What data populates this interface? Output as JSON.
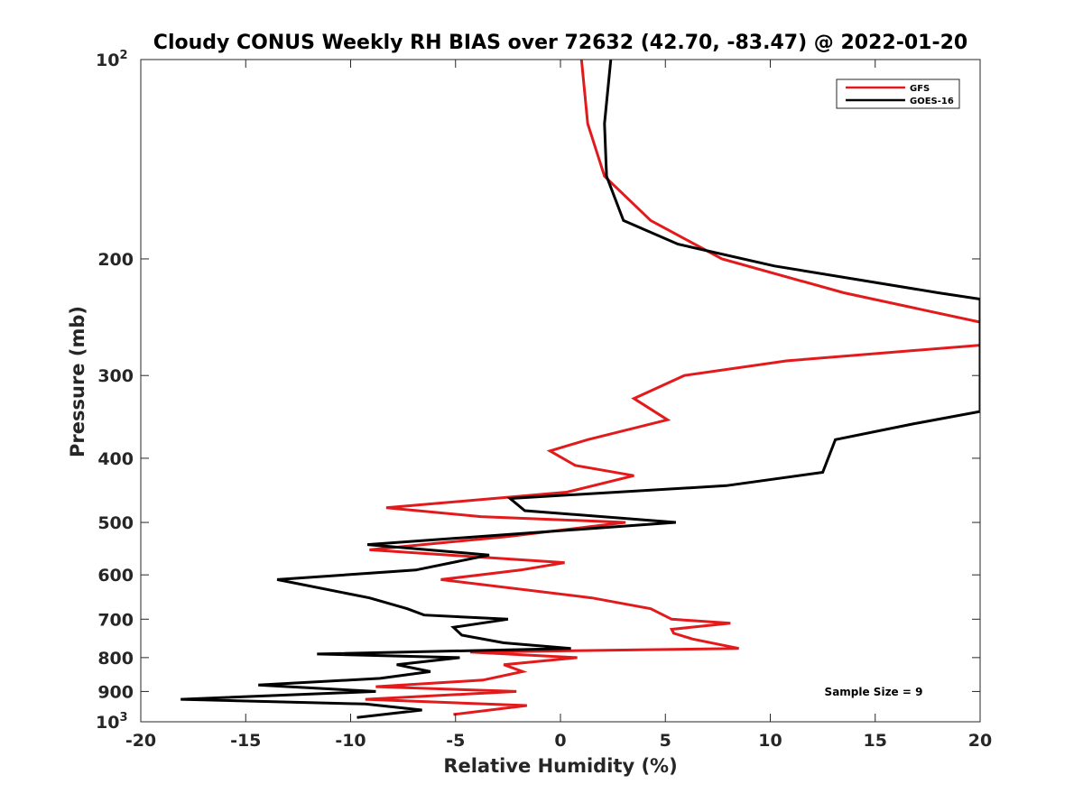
{
  "chart_data": {
    "type": "line",
    "title": "Cloudy CONUS Weekly RH BIAS over 72632 (42.70, -83.47) @ 2022-01-20",
    "xlabel": "Relative Humidity (%)",
    "ylabel": "Pressure (mb)",
    "xlim": [
      -20,
      20
    ],
    "ylim": [
      100,
      1000
    ],
    "yscale": "log",
    "y_reversed": true,
    "grid": false,
    "legend_position": "top-right",
    "x_ticks": [
      -20,
      -15,
      -10,
      -5,
      0,
      5,
      10,
      15,
      20
    ],
    "x_tick_labels": [
      "-20",
      "-15",
      "-10",
      "-5",
      "0",
      "5",
      "10",
      "15",
      "20"
    ],
    "y_ticks": [
      {
        "value": 100,
        "base": "10",
        "exp": "2"
      },
      {
        "value": 200,
        "label": "200"
      },
      {
        "value": 300,
        "label": "300"
      },
      {
        "value": 400,
        "label": "400"
      },
      {
        "value": 500,
        "label": "500"
      },
      {
        "value": 600,
        "label": "600"
      },
      {
        "value": 700,
        "label": "700"
      },
      {
        "value": 800,
        "label": "800"
      },
      {
        "value": 900,
        "label": "900"
      },
      {
        "value": 1000,
        "base": "10",
        "exp": "3"
      }
    ],
    "annotation": "Sample Size = 9",
    "series": [
      {
        "name": "GFS",
        "color": "#e31a1c",
        "points": [
          [
            1.0,
            100
          ],
          [
            1.3,
            125
          ],
          [
            2.1,
            150
          ],
          [
            4.3,
            175
          ],
          [
            7.7,
            200
          ],
          [
            13.5,
            225
          ],
          [
            20.2,
            250
          ],
          [
            20.0,
            270
          ],
          [
            10.8,
            285
          ],
          [
            5.9,
            300
          ],
          [
            3.5,
            325
          ],
          [
            5.1,
            350
          ],
          [
            1.3,
            375
          ],
          [
            -0.5,
            390
          ],
          [
            0.7,
            410
          ],
          [
            3.5,
            425
          ],
          [
            0.3,
            450
          ],
          [
            -8.3,
            475
          ],
          [
            -3.8,
            490
          ],
          [
            3.1,
            500
          ],
          [
            -2.5,
            525
          ],
          [
            -9.1,
            550
          ],
          [
            0.2,
            575
          ],
          [
            -1.9,
            590
          ],
          [
            -5.7,
            610
          ],
          [
            1.5,
            650
          ],
          [
            4.3,
            675
          ],
          [
            5.3,
            700
          ],
          [
            8.1,
            710
          ],
          [
            5.3,
            725
          ],
          [
            5.4,
            735
          ],
          [
            6.3,
            750
          ],
          [
            8.5,
            775
          ],
          [
            -4.3,
            785
          ],
          [
            0.8,
            800
          ],
          [
            -2.7,
            820
          ],
          [
            -1.8,
            840
          ],
          [
            -3.7,
            865
          ],
          [
            -8.8,
            885
          ],
          [
            -2.1,
            900
          ],
          [
            -9.3,
            925
          ],
          [
            -1.6,
            945
          ],
          [
            -5.1,
            975
          ]
        ]
      },
      {
        "name": "GOES-16",
        "color": "#000000",
        "points": [
          [
            2.4,
            100
          ],
          [
            2.1,
            125
          ],
          [
            2.2,
            150
          ],
          [
            3.0,
            175
          ],
          [
            5.6,
            190
          ],
          [
            10.2,
            205
          ],
          [
            18.0,
            225
          ],
          [
            20.0,
            230
          ],
          [
            20.0,
            340
          ],
          [
            16.8,
            355
          ],
          [
            13.1,
            375
          ],
          [
            12.5,
            420
          ],
          [
            7.9,
            440
          ],
          [
            -2.4,
            460
          ],
          [
            -1.7,
            480
          ],
          [
            5.5,
            500
          ],
          [
            -9.2,
            540
          ],
          [
            -3.4,
            560
          ],
          [
            -6.9,
            590
          ],
          [
            -13.5,
            610
          ],
          [
            -9.1,
            650
          ],
          [
            -7.3,
            675
          ],
          [
            -6.5,
            690
          ],
          [
            -2.5,
            700
          ],
          [
            -5.1,
            720
          ],
          [
            -4.7,
            740
          ],
          [
            -2.7,
            760
          ],
          [
            0.5,
            775
          ],
          [
            -11.6,
            790
          ],
          [
            -4.8,
            800
          ],
          [
            -7.8,
            820
          ],
          [
            -6.2,
            840
          ],
          [
            -8.6,
            860
          ],
          [
            -14.4,
            880
          ],
          [
            -8.8,
            900
          ],
          [
            -18.1,
            925
          ],
          [
            -9.3,
            940
          ],
          [
            -6.6,
            960
          ],
          [
            -9.7,
            985
          ]
        ]
      }
    ]
  }
}
